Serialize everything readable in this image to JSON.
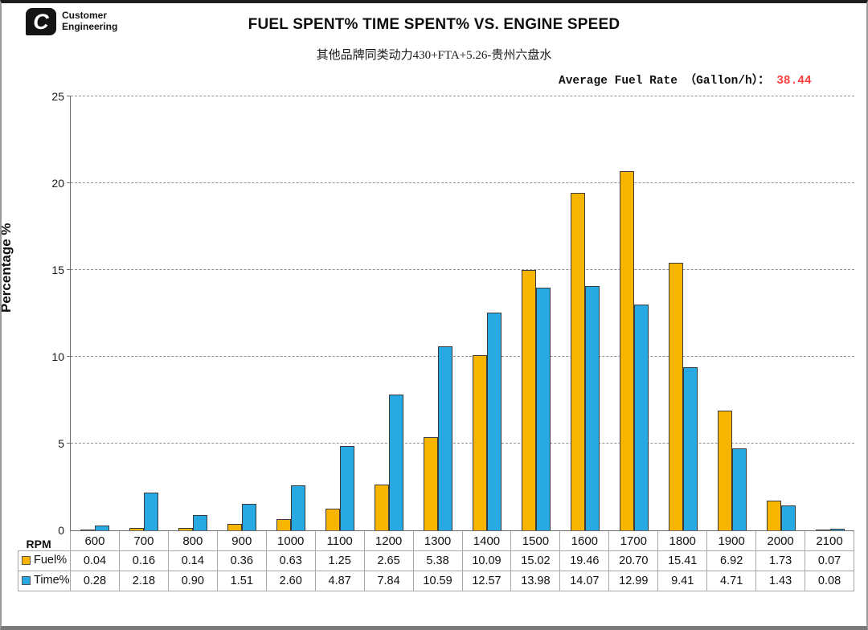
{
  "logo": {
    "mark": "C",
    "line1": "Customer",
    "line2": "Engineering"
  },
  "header": {
    "title": "FUEL SPENT% TIME SPENT% VS. ENGINE SPEED",
    "subtitle": "其他品牌同类动力430+FTA+5.26-贵州六盘水"
  },
  "fuel_rate": {
    "label": "Average Fuel Rate （Gallon/h）： ",
    "value": "38.44",
    "value_color": "#ff4040"
  },
  "chart_data": {
    "type": "bar",
    "title": "FUEL SPENT% TIME SPENT% VS. ENGINE SPEED",
    "subtitle": "其他品牌同类动力430+FTA+5.26-贵州六盘水",
    "xlabel": "RPM",
    "ylabel": "Percentage %",
    "ylim": [
      0,
      25
    ],
    "ytick_step": 5,
    "grid": "horizontal-dashed",
    "legend_position": "table-left-column",
    "categories": [
      600,
      700,
      800,
      900,
      1000,
      1100,
      1200,
      1300,
      1400,
      1500,
      1600,
      1700,
      1800,
      1900,
      2000,
      2100
    ],
    "series": [
      {
        "name": "Fuel%",
        "color": "#f7b400",
        "values": [
          0.04,
          0.16,
          0.14,
          0.36,
          0.63,
          1.25,
          2.65,
          5.38,
          10.09,
          15.02,
          19.46,
          20.7,
          15.41,
          6.92,
          1.73,
          0.07
        ]
      },
      {
        "name": "Time%",
        "color": "#29a9e1",
        "values": [
          0.28,
          2.18,
          0.9,
          1.51,
          2.6,
          4.87,
          7.84,
          10.59,
          12.57,
          13.98,
          14.07,
          12.99,
          9.41,
          4.71,
          1.43,
          0.08
        ]
      }
    ]
  }
}
